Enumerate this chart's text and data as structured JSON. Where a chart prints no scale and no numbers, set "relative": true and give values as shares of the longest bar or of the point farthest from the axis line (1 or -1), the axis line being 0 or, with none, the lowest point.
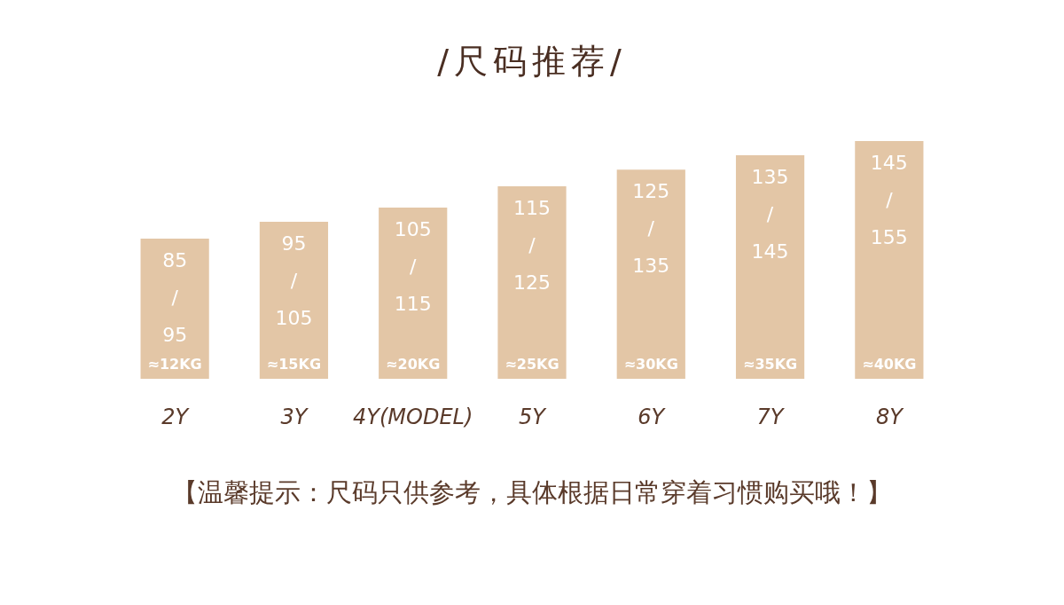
{
  "chart_data": {
    "type": "bar",
    "title": "/尺码推荐/",
    "relative": true,
    "color": "#e3c6a6",
    "categories": [
      "2Y",
      "3Y",
      "4Y(MODEL)",
      "5Y",
      "6Y",
      "7Y",
      "8Y"
    ],
    "values": [
      0.59,
      0.66,
      0.72,
      0.81,
      0.88,
      0.94,
      1
    ],
    "annotations": [
      "85/95",
      "95/105",
      "105/115",
      "115/125",
      "125/135",
      "135/145",
      "145/155",
      "≈12KG",
      "≈15KG",
      "≈20KG",
      "≈25KG",
      "≈30KG",
      "≈35KG",
      "≈40KG",
      "【温馨提示：尺码只供参考，具体根据日常穿着习惯购买哦！】"
    ]
  }
}
